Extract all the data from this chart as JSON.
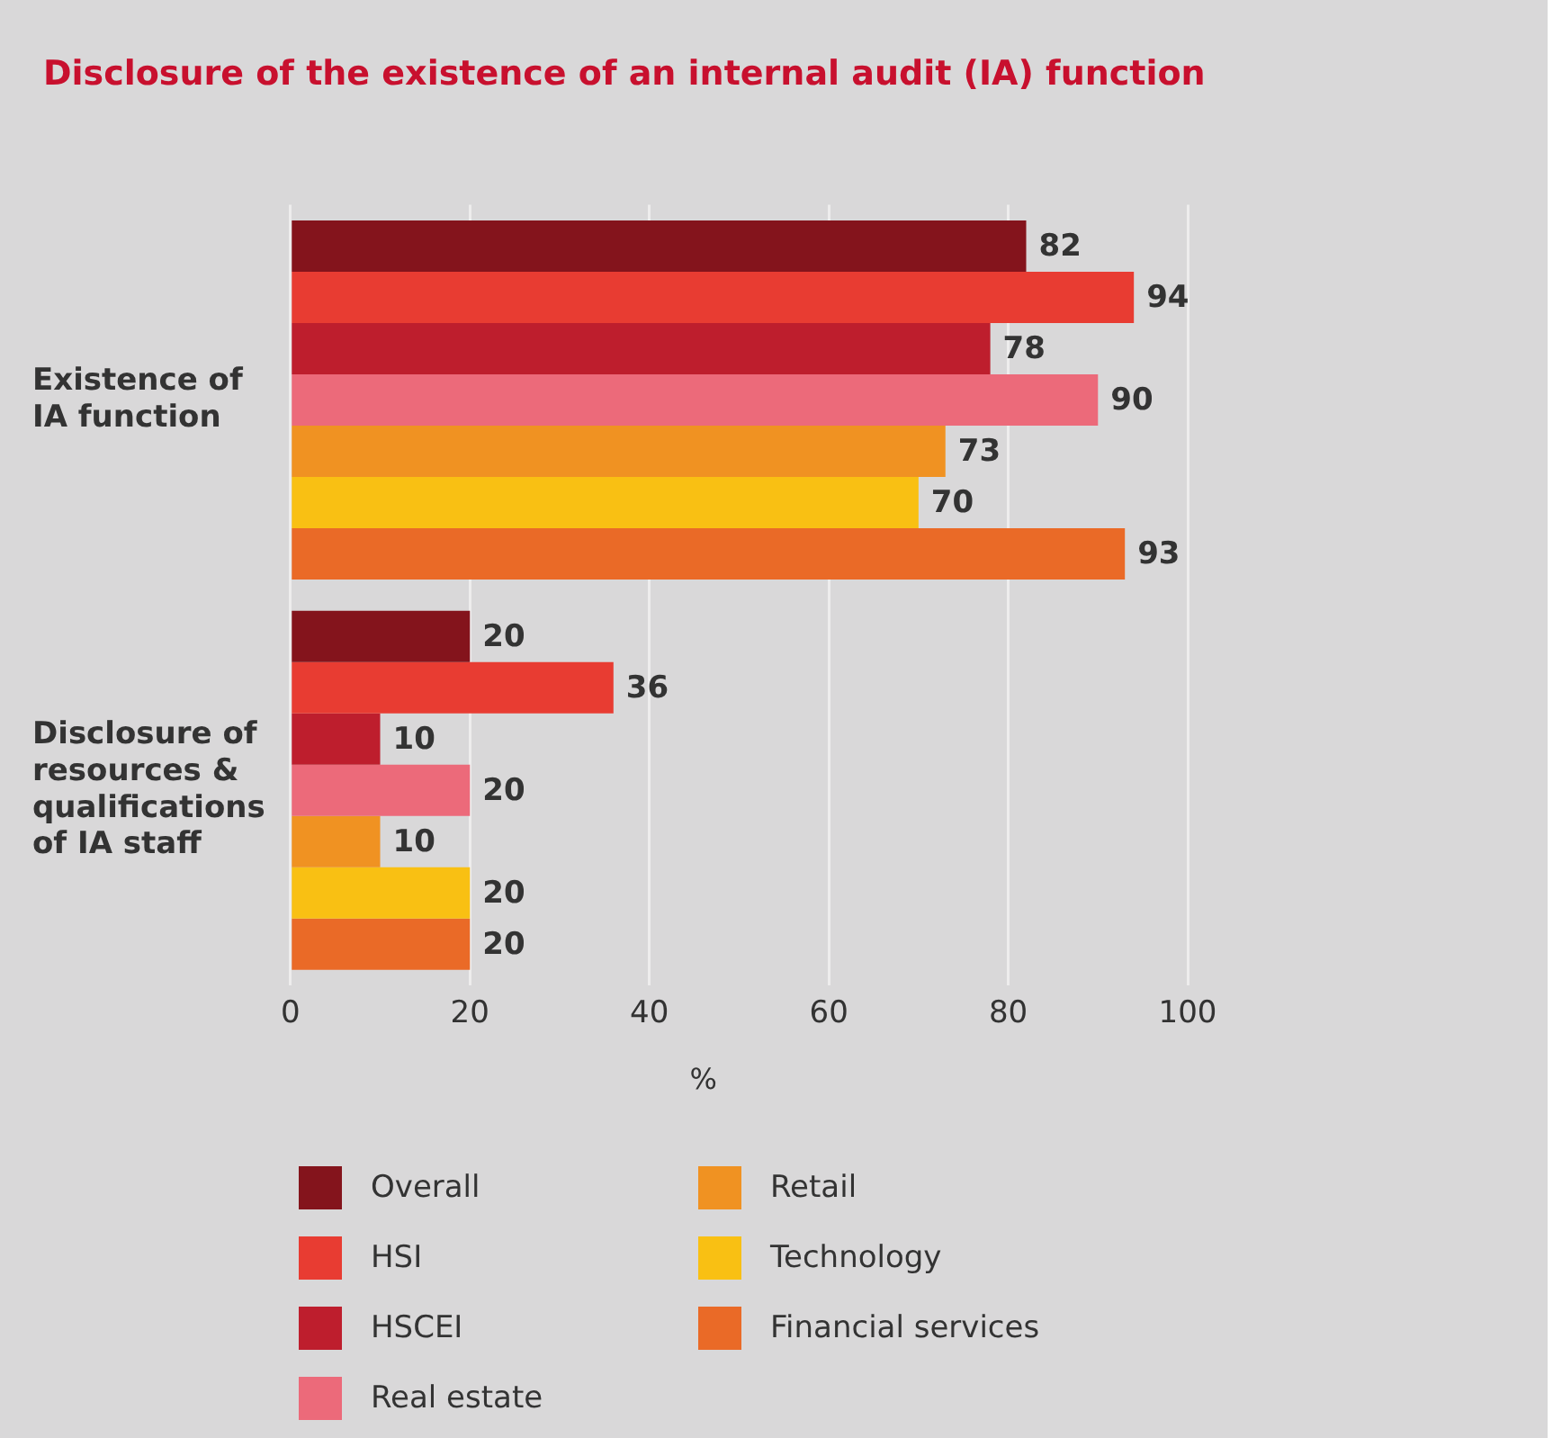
{
  "chart_data": {
    "type": "bar",
    "orientation": "horizontal",
    "title": "Disclosure of the existence of an internal audit (IA) function",
    "xlabel": "%",
    "categories": [
      "Existence of IA function",
      "Disclosure of resources & qualifications of IA staff"
    ],
    "series": [
      {
        "name": "Overall",
        "color": "#84141c",
        "values": [
          82,
          20
        ]
      },
      {
        "name": "HSI",
        "color": "#e83c32",
        "values": [
          94,
          36
        ]
      },
      {
        "name": "HSCEI",
        "color": "#be1e2d",
        "values": [
          78,
          10
        ]
      },
      {
        "name": "Real estate",
        "color": "#ec6a7a",
        "values": [
          90,
          20
        ]
      },
      {
        "name": "Retail",
        "color": "#f09222",
        "values": [
          73,
          10
        ]
      },
      {
        "name": "Technology",
        "color": "#f9c013",
        "values": [
          70,
          20
        ]
      },
      {
        "name": "Financial services",
        "color": "#ea6a27",
        "values": [
          93,
          20
        ]
      }
    ],
    "xlim": [
      0,
      100
    ],
    "xticks": [
      0,
      20,
      40,
      60,
      80,
      100
    ],
    "grid": "x",
    "legend": "bottom",
    "data_labels": true
  }
}
